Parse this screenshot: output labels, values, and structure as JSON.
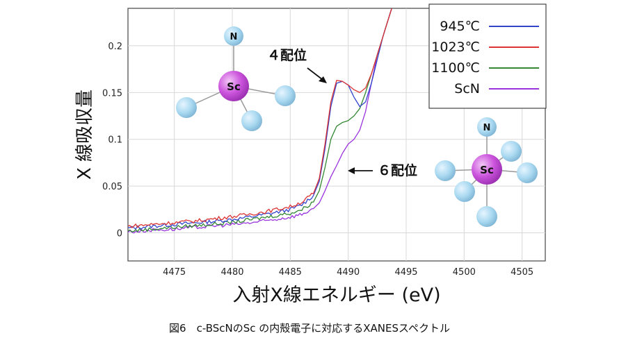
{
  "chart_data": {
    "type": "line",
    "xlabel": "入射X線エネルギー (eV)",
    "ylabel": "X 線吸収量",
    "xlim": [
      4471,
      4507
    ],
    "ylim": [
      -0.03,
      0.24
    ],
    "x_ticks": [
      4475,
      4480,
      4485,
      4490,
      4495,
      4500,
      4505
    ],
    "y_ticks": [
      0,
      0.05,
      0.1,
      0.15,
      0.2
    ],
    "grid": true,
    "legend_position": "top-right",
    "series": [
      {
        "name": "945℃",
        "color": "#3344cc",
        "x": [
          4471,
          4473,
          4475,
          4477,
          4479,
          4481,
          4483,
          4485,
          4486,
          4487,
          4487.5,
          4488,
          4488.5,
          4489,
          4489.5,
          4490,
          4490.5,
          4491,
          4491.5,
          4492,
          4492.5,
          4493,
          4493.5,
          4494,
          4494.5
        ],
        "y": [
          0.005,
          0.007,
          0.009,
          0.011,
          0.013,
          0.016,
          0.02,
          0.025,
          0.03,
          0.04,
          0.055,
          0.09,
          0.135,
          0.16,
          0.162,
          0.158,
          0.145,
          0.135,
          0.14,
          0.16,
          0.185,
          0.21,
          0.23,
          0.25,
          0.26
        ]
      },
      {
        "name": "1023℃",
        "color": "#dd3333",
        "x": [
          4471,
          4473,
          4475,
          4477,
          4479,
          4481,
          4483,
          4485,
          4486,
          4487,
          4487.5,
          4488,
          4488.5,
          4489,
          4489.5,
          4490,
          4490.5,
          4491,
          4491.5,
          4492,
          4492.5,
          4493,
          4493.5,
          4494,
          4494.5
        ],
        "y": [
          0.007,
          0.009,
          0.011,
          0.013,
          0.016,
          0.019,
          0.023,
          0.028,
          0.033,
          0.042,
          0.058,
          0.095,
          0.14,
          0.163,
          0.162,
          0.158,
          0.153,
          0.15,
          0.155,
          0.17,
          0.19,
          0.21,
          0.23,
          0.25,
          0.26
        ]
      },
      {
        "name": "1100℃",
        "color": "#338833",
        "x": [
          4471,
          4473,
          4475,
          4477,
          4479,
          4481,
          4483,
          4485,
          4486,
          4487,
          4487.5,
          4488,
          4488.5,
          4489,
          4489.5,
          4490,
          4490.5,
          4491,
          4491.5,
          4492,
          4492.5,
          4493,
          4493.5,
          4494,
          4494.5
        ],
        "y": [
          0.002,
          0.004,
          0.006,
          0.008,
          0.01,
          0.013,
          0.017,
          0.021,
          0.025,
          0.033,
          0.045,
          0.07,
          0.1,
          0.114,
          0.118,
          0.12,
          0.125,
          0.133,
          0.15,
          0.17,
          0.19,
          0.21,
          0.23,
          0.25,
          0.26
        ]
      },
      {
        "name": "ScN",
        "color": "#9933dd",
        "x": [
          4471,
          4473,
          4475,
          4477,
          4479,
          4481,
          4483,
          4485,
          4486,
          4487,
          4487.5,
          4488,
          4488.5,
          4489,
          4489.5,
          4490,
          4490.5,
          4491,
          4491.5,
          4492,
          4492.5,
          4493,
          4493.5,
          4494,
          4494.5
        ],
        "y": [
          0.001,
          0.003,
          0.004,
          0.006,
          0.008,
          0.01,
          0.013,
          0.017,
          0.02,
          0.026,
          0.032,
          0.045,
          0.06,
          0.072,
          0.085,
          0.095,
          0.1,
          0.11,
          0.13,
          0.16,
          0.19,
          0.21,
          0.23,
          0.25,
          0.26
        ]
      }
    ],
    "annotations": [
      {
        "text": "４配位",
        "arrow_to": [
          4488.8,
          0.162
        ]
      },
      {
        "text": "６配位",
        "arrow_to": [
          4490,
          0.067
        ]
      }
    ]
  },
  "molecules": [
    {
      "center": "Sc",
      "top": "N",
      "center_color": "#cc55dd",
      "ligand_color": "#a8d8f0"
    },
    {
      "center": "Sc",
      "top": "N",
      "center_color": "#cc55dd",
      "ligand_color": "#a8d8f0"
    }
  ],
  "caption": "図6　c-BScNのSc の内殻電子に対応するXANESスペクトル"
}
